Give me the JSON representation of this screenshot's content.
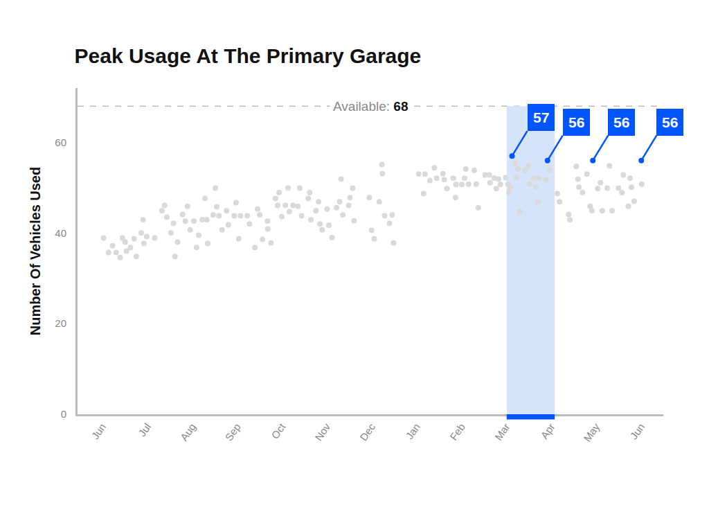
{
  "chart_data": {
    "type": "scatter",
    "title": "Peak Usage At The Primary Garage",
    "y_label": "Number Of Vehicles Used",
    "xlim": [
      -0.55,
      12.5
    ],
    "xticks": [
      {
        "value": 0,
        "label": "Jun"
      },
      {
        "value": 1,
        "label": "Jul"
      },
      {
        "value": 2,
        "label": "Aug"
      },
      {
        "value": 3,
        "label": "Sep"
      },
      {
        "value": 4,
        "label": "Oct"
      },
      {
        "value": 5,
        "label": "Nov"
      },
      {
        "value": 6,
        "label": "Dec"
      },
      {
        "value": 7,
        "label": "Jan"
      },
      {
        "value": 8,
        "label": "Feb"
      },
      {
        "value": 9,
        "label": "Mar"
      },
      {
        "value": 10,
        "label": "Apr"
      },
      {
        "value": 11,
        "label": "May"
      },
      {
        "value": 12,
        "label": "Jun"
      }
    ],
    "ylim": [
      0,
      72
    ],
    "yticks": [
      0,
      20,
      40,
      60
    ],
    "grid": false,
    "reference": {
      "label": "Available:",
      "value": 68
    },
    "band": {
      "x": [
        9.01,
        10.08
      ],
      "color": "#d6e4fb",
      "edge_color": "#0055ff"
    },
    "series": [
      {
        "color": "#d9d9d9",
        "marker": "circle",
        "x": [
          0.03,
          0.14,
          0.23,
          0.31,
          0.4,
          0.45,
          0.51,
          0.54,
          0.63,
          0.71,
          0.76,
          0.87,
          0.91,
          0.93,
          0.99,
          1.17,
          1.33,
          1.39,
          1.44,
          1.53,
          1.59,
          1.62,
          1.68,
          1.79,
          1.85,
          1.9,
          1.96,
          2.04,
          2.1,
          2.15,
          2.23,
          2.29,
          2.33,
          2.35,
          2.47,
          2.52,
          2.55,
          2.6,
          2.67,
          2.77,
          2.81,
          2.94,
          2.98,
          3.04,
          3.08,
          3.23,
          3.28,
          3.4,
          3.46,
          3.51,
          3.57,
          3.68,
          3.69,
          3.76,
          3.86,
          3.91,
          3.94,
          4.0,
          4.08,
          4.14,
          4.17,
          4.25,
          4.36,
          4.4,
          4.44,
          4.59,
          4.62,
          4.65,
          4.76,
          4.82,
          4.85,
          4.9,
          5.01,
          5.05,
          5.12,
          5.22,
          5.29,
          5.32,
          5.36,
          5.49,
          5.52,
          5.58,
          5.61,
          5.95,
          6.0,
          6.06,
          6.17,
          6.23,
          6.24,
          6.29,
          6.4,
          6.46,
          6.49,
          7.05,
          7.16,
          7.19,
          7.3,
          7.4,
          7.45,
          7.59,
          7.62,
          7.68,
          7.82,
          7.87,
          7.88,
          8.01,
          8.07,
          8.1,
          8.16,
          8.29,
          8.33,
          8.38,
          8.53,
          8.62,
          8.64,
          8.73,
          8.78,
          8.83,
          8.87,
          8.99,
          9.04,
          9.06,
          9.09,
          9.2,
          9.23,
          9.26,
          9.3,
          9.41,
          9.49,
          9.52,
          9.61,
          9.66,
          9.71,
          9.72,
          9.89,
          9.97,
          10.14,
          10.19,
          10.39,
          10.42,
          10.56,
          10.6,
          10.62,
          10.7,
          10.8,
          10.87,
          10.91,
          11.04,
          11.1,
          11.14,
          11.25,
          11.3,
          11.36,
          11.5,
          11.58,
          11.61,
          11.72,
          11.76,
          11.79,
          11.85,
          12.02
        ],
        "values": [
          38.9,
          35.7,
          37.2,
          35.7,
          34.6,
          38.9,
          38,
          36,
          36.8,
          38.7,
          34.8,
          40,
          42.9,
          37.7,
          39.2,
          38.9,
          44.9,
          46.1,
          43.5,
          40,
          42.1,
          34.8,
          38,
          44.1,
          42.6,
          45.9,
          40.7,
          42.6,
          36.8,
          39.5,
          42.9,
          47.6,
          42.9,
          37.7,
          44,
          49.9,
          45.8,
          43.8,
          40.7,
          44.9,
          41.8,
          43.8,
          46.7,
          38.7,
          43.8,
          43.8,
          42,
          36.8,
          45.3,
          44,
          38.6,
          42.6,
          40.9,
          37.8,
          47.6,
          46.1,
          48.9,
          43.6,
          46.1,
          49.9,
          44.7,
          46.1,
          45.9,
          49.9,
          43.8,
          47.6,
          48.9,
          42.9,
          44.9,
          46.9,
          42,
          40.7,
          45.3,
          41.7,
          39,
          45.6,
          46.9,
          51.9,
          44,
          46.1,
          47.8,
          49.9,
          42.7,
          47.8,
          40.6,
          38.7,
          46.9,
          55.1,
          53.1,
          43.8,
          42.1,
          44,
          37.8,
          53,
          48.7,
          53,
          51.6,
          54.4,
          52.1,
          53.1,
          51.8,
          49.8,
          52.1,
          47.8,
          50.7,
          50.7,
          52.1,
          54.1,
          50.8,
          53.8,
          50.8,
          45.6,
          52.8,
          52.8,
          51.1,
          52.1,
          49.8,
          51.9,
          50.7,
          52.2,
          50.7,
          48.9,
          50.1,
          55.3,
          52.2,
          54.1,
          44.7,
          53.8,
          54.8,
          50.8,
          52.1,
          50.2,
          46.9,
          52.1,
          51.8,
          53.9,
          48.7,
          46.9,
          44.1,
          42.9,
          54.7,
          51.9,
          50.1,
          48.9,
          53,
          45.9,
          44.9,
          49.8,
          51.1,
          44.9,
          49.9,
          54.8,
          44.9,
          49.9,
          48.9,
          52.8,
          45.9,
          52.1,
          50.1,
          47,
          50.8
        ]
      },
      {
        "color": "#0055ff",
        "marker": "circle",
        "data_labels": true,
        "x": [
          9.13,
          9.92,
          10.93,
          12.01
        ],
        "values": [
          57,
          56,
          56,
          56
        ]
      }
    ]
  }
}
